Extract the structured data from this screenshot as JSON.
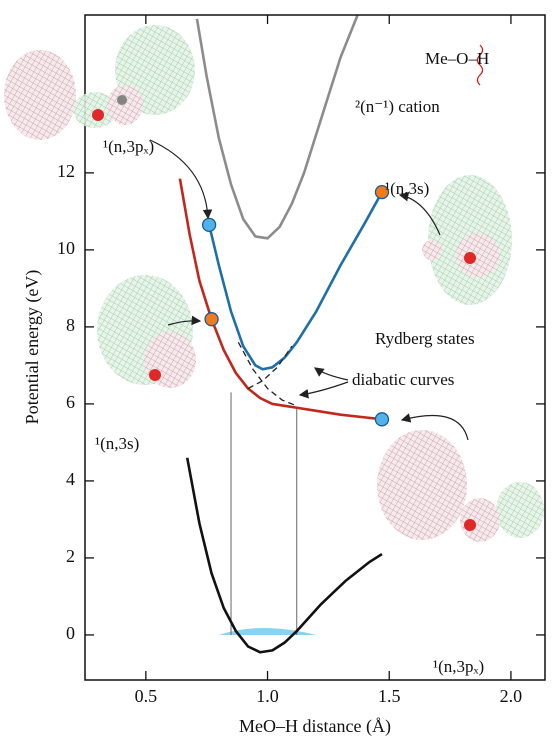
{
  "chart_data": {
    "type": "line",
    "x_label": "MeO–H distance (Å)",
    "y_label": "Potential energy (eV)",
    "xlim": [
      0.25,
      2.14
    ],
    "ylim": [
      -1.17,
      16.1
    ],
    "xticks": [
      0.5,
      {
        "value": 1,
        "label": "1.0"
      },
      1.5,
      {
        "value": 2,
        "label": "2.0"
      }
    ],
    "yticks": [
      0,
      2,
      4,
      6,
      8,
      10,
      12
    ],
    "series": [
      {
        "color": "#111111",
        "x": [
          0.67,
          0.72,
          0.77,
          0.82,
          0.87,
          0.92,
          0.97,
          1.02,
          1.07,
          1.12,
          1.17,
          1.22,
          1.27,
          1.32,
          1.37,
          1.42,
          1.47
        ],
        "values": [
          4.6,
          2.9,
          1.6,
          0.7,
          0.1,
          -0.3,
          -0.45,
          -0.4,
          -0.2,
          0.1,
          0.45,
          0.8,
          1.1,
          1.4,
          1.65,
          1.9,
          2.1
        ]
      },
      {
        "color": "#8c8c8c",
        "x": [
          0.71,
          0.75,
          0.8,
          0.85,
          0.9,
          0.95,
          1.0,
          1.05,
          1.1,
          1.15,
          1.2,
          1.25,
          1.3,
          1.37
        ],
        "values": [
          16,
          14.5,
          12.9,
          11.7,
          10.8,
          10.35,
          10.3,
          10.6,
          11.2,
          12,
          13,
          14,
          15,
          16.1
        ]
      },
      {
        "color": "#c0281e",
        "x": [
          0.64,
          0.68,
          0.72,
          0.77,
          0.82,
          0.87,
          0.92,
          0.97,
          1.02,
          1.07,
          1.12,
          1.2,
          1.3,
          1.4,
          1.47
        ],
        "values": [
          11.85,
          10.4,
          9.2,
          8.2,
          7.4,
          6.8,
          6.4,
          6.15,
          6,
          5.95,
          5.9,
          5.82,
          5.72,
          5.65,
          5.6
        ]
      },
      {
        "color": "#1f6fa8",
        "x": [
          0.76,
          0.8,
          0.85,
          0.9,
          0.95,
          0.98,
          1.02,
          1.07,
          1.12,
          1.2,
          1.3,
          1.4,
          1.47
        ],
        "values": [
          10.65,
          9.6,
          8.4,
          7.5,
          7,
          6.9,
          6.95,
          7.2,
          7.6,
          8.4,
          9.6,
          10.7,
          11.5
        ]
      },
      {
        "color": "#222222",
        "dashed": true,
        "x": [
          0.92,
          0.98,
          1.04,
          1.1
        ],
        "values": [
          6.4,
          6.6,
          6.95,
          7.5
        ]
      },
      {
        "color": "#222222",
        "dashed": true,
        "x": [
          0.88,
          0.94,
          1.0,
          1.06,
          1.12
        ],
        "values": [
          7.6,
          6.9,
          6.4,
          6.1,
          5.95
        ]
      }
    ],
    "markers": {
      "x": [
        0.76,
        1.47,
        0.77,
        1.47
      ],
      "values": [
        10.65,
        11.5,
        8.2,
        5.6
      ],
      "colors": [
        "#4fb3e8",
        "#f07a1e",
        "#f07a1e",
        "#4fb3e8"
      ]
    },
    "vlines": {
      "x": [
        0.85,
        1.12
      ],
      "values": [
        6.3,
        5.9
      ]
    },
    "annotations": [
      "²(n⁻¹) cation",
      "¹(n,3pₓ)",
      "¹(n,3s)",
      "Rydberg states",
      "diabatic curves",
      "¹(n,3s)",
      "¹(n,3pₓ)",
      "Me–O–H"
    ]
  }
}
